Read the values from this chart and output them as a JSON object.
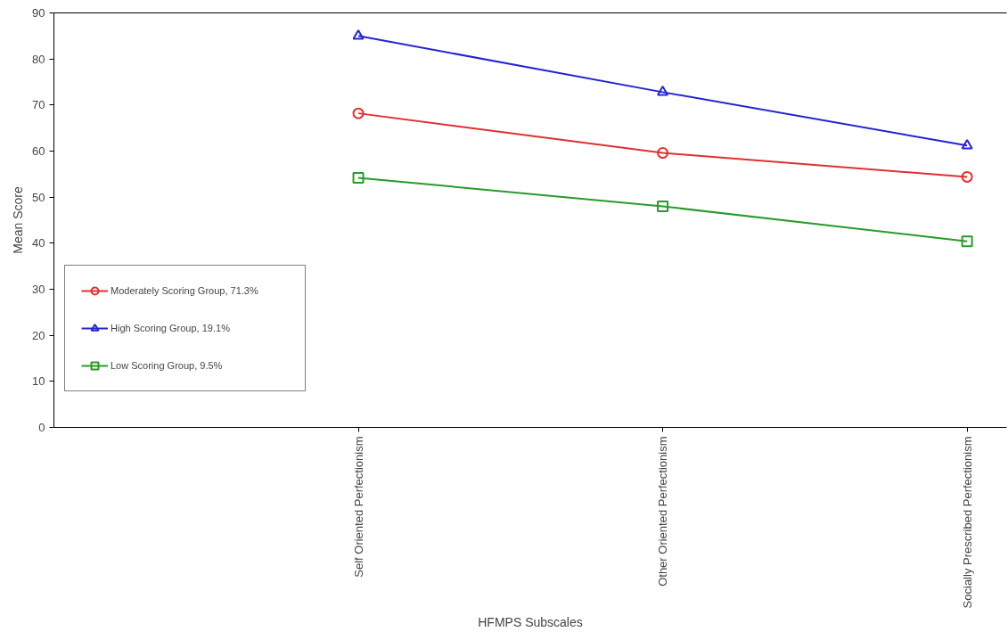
{
  "chart_data": {
    "type": "line",
    "xlabel": "HFMPS Subscales",
    "ylabel": "Mean Score",
    "categories": [
      "Self Oriented Perfectionism",
      "Other Oriented Perfectionism",
      "Socially Prescribed Perfectionism"
    ],
    "series": [
      {
        "name": "Moderately Scoring Group, 71.3%",
        "color": "#e03030",
        "marker": "circle",
        "values": [
          68.2,
          59.6,
          54.4
        ]
      },
      {
        "name": "High Scoring Group, 19.1%",
        "color": "#2424d0",
        "marker": "triangle",
        "values": [
          85.0,
          72.8,
          61.2
        ]
      },
      {
        "name": "Low Scoring Group, 9.5%",
        "color": "#2a9a2a",
        "marker": "square",
        "values": [
          54.2,
          48.0,
          40.4
        ]
      }
    ],
    "ylim": [
      0,
      90
    ],
    "yticks": [
      0,
      10,
      20,
      30,
      40,
      50,
      60,
      70,
      80,
      90
    ],
    "grid": false,
    "legend": "left"
  }
}
